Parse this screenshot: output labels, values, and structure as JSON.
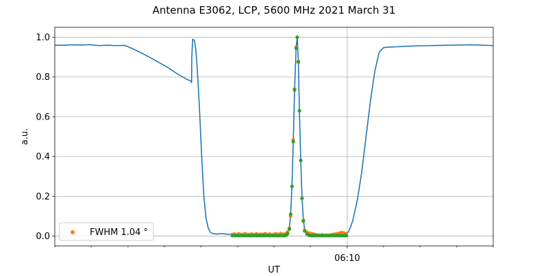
{
  "chart_data": {
    "type": "line",
    "title": "Antenna E3062, LCP, 5600 MHz 2021 March 31",
    "xlabel": "UT",
    "ylabel": "a.u.",
    "xlim": [
      0,
      1
    ],
    "ylim": [
      -0.05,
      1.05
    ],
    "yticks": [
      0.0,
      0.2,
      0.4,
      0.6,
      0.8,
      1.0
    ],
    "ytick_labels": [
      "0.0",
      "0.2",
      "0.4",
      "0.6",
      "0.8",
      "1.0"
    ],
    "xtick_labels": [
      {
        "x": 0.667,
        "label": "06:10"
      }
    ],
    "x_minor_ticks": [
      0.0,
      0.083,
      0.167,
      0.25,
      0.333,
      0.417,
      0.5,
      0.583,
      0.75,
      0.833,
      0.917,
      1.0
    ],
    "grid": true,
    "legend_position": "lower-left",
    "legend": [
      {
        "label": "FWHM 1.04$^\\circ$",
        "display": "FWHM 1.04 °",
        "color": "#ff7f0e",
        "marker": "circle"
      }
    ],
    "series": [
      {
        "name": "",
        "type": "line",
        "color": "#1f77b4",
        "x": [
          0.0,
          0.02,
          0.04,
          0.06,
          0.08,
          0.1,
          0.12,
          0.14,
          0.16,
          0.18,
          0.2,
          0.22,
          0.24,
          0.26,
          0.28,
          0.3,
          0.31,
          0.312,
          0.3125,
          0.3145,
          0.3185,
          0.3215,
          0.325,
          0.33,
          0.335,
          0.34,
          0.345,
          0.35,
          0.355,
          0.36,
          0.37,
          0.38,
          0.39,
          0.4,
          0.41,
          0.415,
          0.418,
          0.42,
          0.5,
          0.52,
          0.528,
          0.53,
          0.535,
          0.538,
          0.541,
          0.544,
          0.547,
          0.5505,
          0.553,
          0.5555,
          0.558,
          0.561,
          0.564,
          0.567,
          0.57,
          0.574,
          0.58,
          0.6,
          0.62,
          0.64,
          0.66,
          0.667,
          0.672,
          0.68,
          0.69,
          0.7,
          0.71,
          0.72,
          0.73,
          0.74,
          0.75,
          0.76,
          0.78,
          0.8,
          0.85,
          0.9,
          0.95,
          1.0
        ],
        "values": [
          0.96,
          0.96,
          0.962,
          0.961,
          0.963,
          0.958,
          0.96,
          0.958,
          0.959,
          0.94,
          0.918,
          0.895,
          0.87,
          0.845,
          0.815,
          0.79,
          0.78,
          0.772,
          0.9,
          0.99,
          0.985,
          0.94,
          0.84,
          0.64,
          0.4,
          0.2,
          0.09,
          0.04,
          0.018,
          0.012,
          0.01,
          0.012,
          0.01,
          0.008,
          0.006,
          0.005,
          0.004,
          0.004,
          0.004,
          0.004,
          0.005,
          0.01,
          0.04,
          0.11,
          0.25,
          0.48,
          0.74,
          0.95,
          1.0,
          0.88,
          0.63,
          0.38,
          0.19,
          0.08,
          0.03,
          0.012,
          0.005,
          0.003,
          0.004,
          0.004,
          0.006,
          0.012,
          0.03,
          0.08,
          0.18,
          0.32,
          0.5,
          0.68,
          0.83,
          0.925,
          0.948,
          0.95,
          0.952,
          0.955,
          0.958,
          0.96,
          0.962,
          0.958
        ]
      },
      {
        "name": "FWHM 1.04 °",
        "type": "scatter",
        "color": "#ff7f0e",
        "x": [
          0.405,
          0.41,
          0.415,
          0.42,
          0.425,
          0.43,
          0.435,
          0.44,
          0.445,
          0.45,
          0.455,
          0.46,
          0.465,
          0.47,
          0.475,
          0.48,
          0.485,
          0.49,
          0.495,
          0.5,
          0.505,
          0.51,
          0.515,
          0.52,
          0.525,
          0.528,
          0.531,
          0.535,
          0.538,
          0.541,
          0.544,
          0.547,
          0.5505,
          0.553,
          0.5555,
          0.558,
          0.561,
          0.564,
          0.567,
          0.57,
          0.575,
          0.58,
          0.585,
          0.59,
          0.595,
          0.6,
          0.605,
          0.61,
          0.615,
          0.62,
          0.625,
          0.63,
          0.635,
          0.64,
          0.645,
          0.65,
          0.655,
          0.66,
          0.665
        ],
        "values": [
          0.008,
          0.01,
          0.006,
          0.011,
          0.007,
          0.009,
          0.012,
          0.006,
          0.008,
          0.01,
          0.007,
          0.011,
          0.006,
          0.009,
          0.008,
          0.012,
          0.007,
          0.01,
          0.006,
          0.009,
          0.011,
          0.008,
          0.012,
          0.01,
          0.009,
          0.014,
          0.02,
          0.04,
          0.1,
          0.25,
          0.485,
          0.74,
          0.95,
          1.0,
          0.88,
          0.63,
          0.38,
          0.19,
          0.08,
          0.03,
          0.018,
          0.015,
          0.012,
          0.01,
          0.007,
          0.005,
          0.004,
          0.006,
          0.003,
          0.005,
          0.004,
          0.006,
          0.008,
          0.01,
          0.012,
          0.015,
          0.018,
          0.015,
          0.012
        ]
      },
      {
        "name": "",
        "type": "scatter",
        "color": "#2ca02c",
        "x": [
          0.405,
          0.41,
          0.415,
          0.42,
          0.425,
          0.43,
          0.435,
          0.44,
          0.445,
          0.45,
          0.455,
          0.46,
          0.465,
          0.47,
          0.475,
          0.48,
          0.485,
          0.49,
          0.495,
          0.5,
          0.505,
          0.51,
          0.515,
          0.52,
          0.525,
          0.528,
          0.531,
          0.535,
          0.538,
          0.541,
          0.544,
          0.547,
          0.5505,
          0.553,
          0.5555,
          0.558,
          0.561,
          0.564,
          0.567,
          0.57,
          0.575,
          0.58,
          0.585,
          0.59,
          0.595,
          0.6,
          0.605,
          0.61,
          0.615,
          0.62,
          0.625,
          0.63,
          0.635,
          0.64,
          0.645,
          0.65,
          0.655,
          0.66,
          0.665
        ],
        "values": [
          0.002,
          0.002,
          0.002,
          0.002,
          0.002,
          0.002,
          0.002,
          0.002,
          0.002,
          0.002,
          0.002,
          0.002,
          0.002,
          0.002,
          0.002,
          0.002,
          0.002,
          0.002,
          0.002,
          0.002,
          0.002,
          0.002,
          0.002,
          0.002,
          0.002,
          0.005,
          0.012,
          0.035,
          0.11,
          0.25,
          0.475,
          0.735,
          0.945,
          1.0,
          0.875,
          0.63,
          0.38,
          0.19,
          0.075,
          0.025,
          0.01,
          0.003,
          0.002,
          0.002,
          0.002,
          0.002,
          0.002,
          0.002,
          0.002,
          0.002,
          0.002,
          0.002,
          0.002,
          0.002,
          0.002,
          0.002,
          0.002,
          0.002,
          0.002
        ]
      }
    ]
  }
}
